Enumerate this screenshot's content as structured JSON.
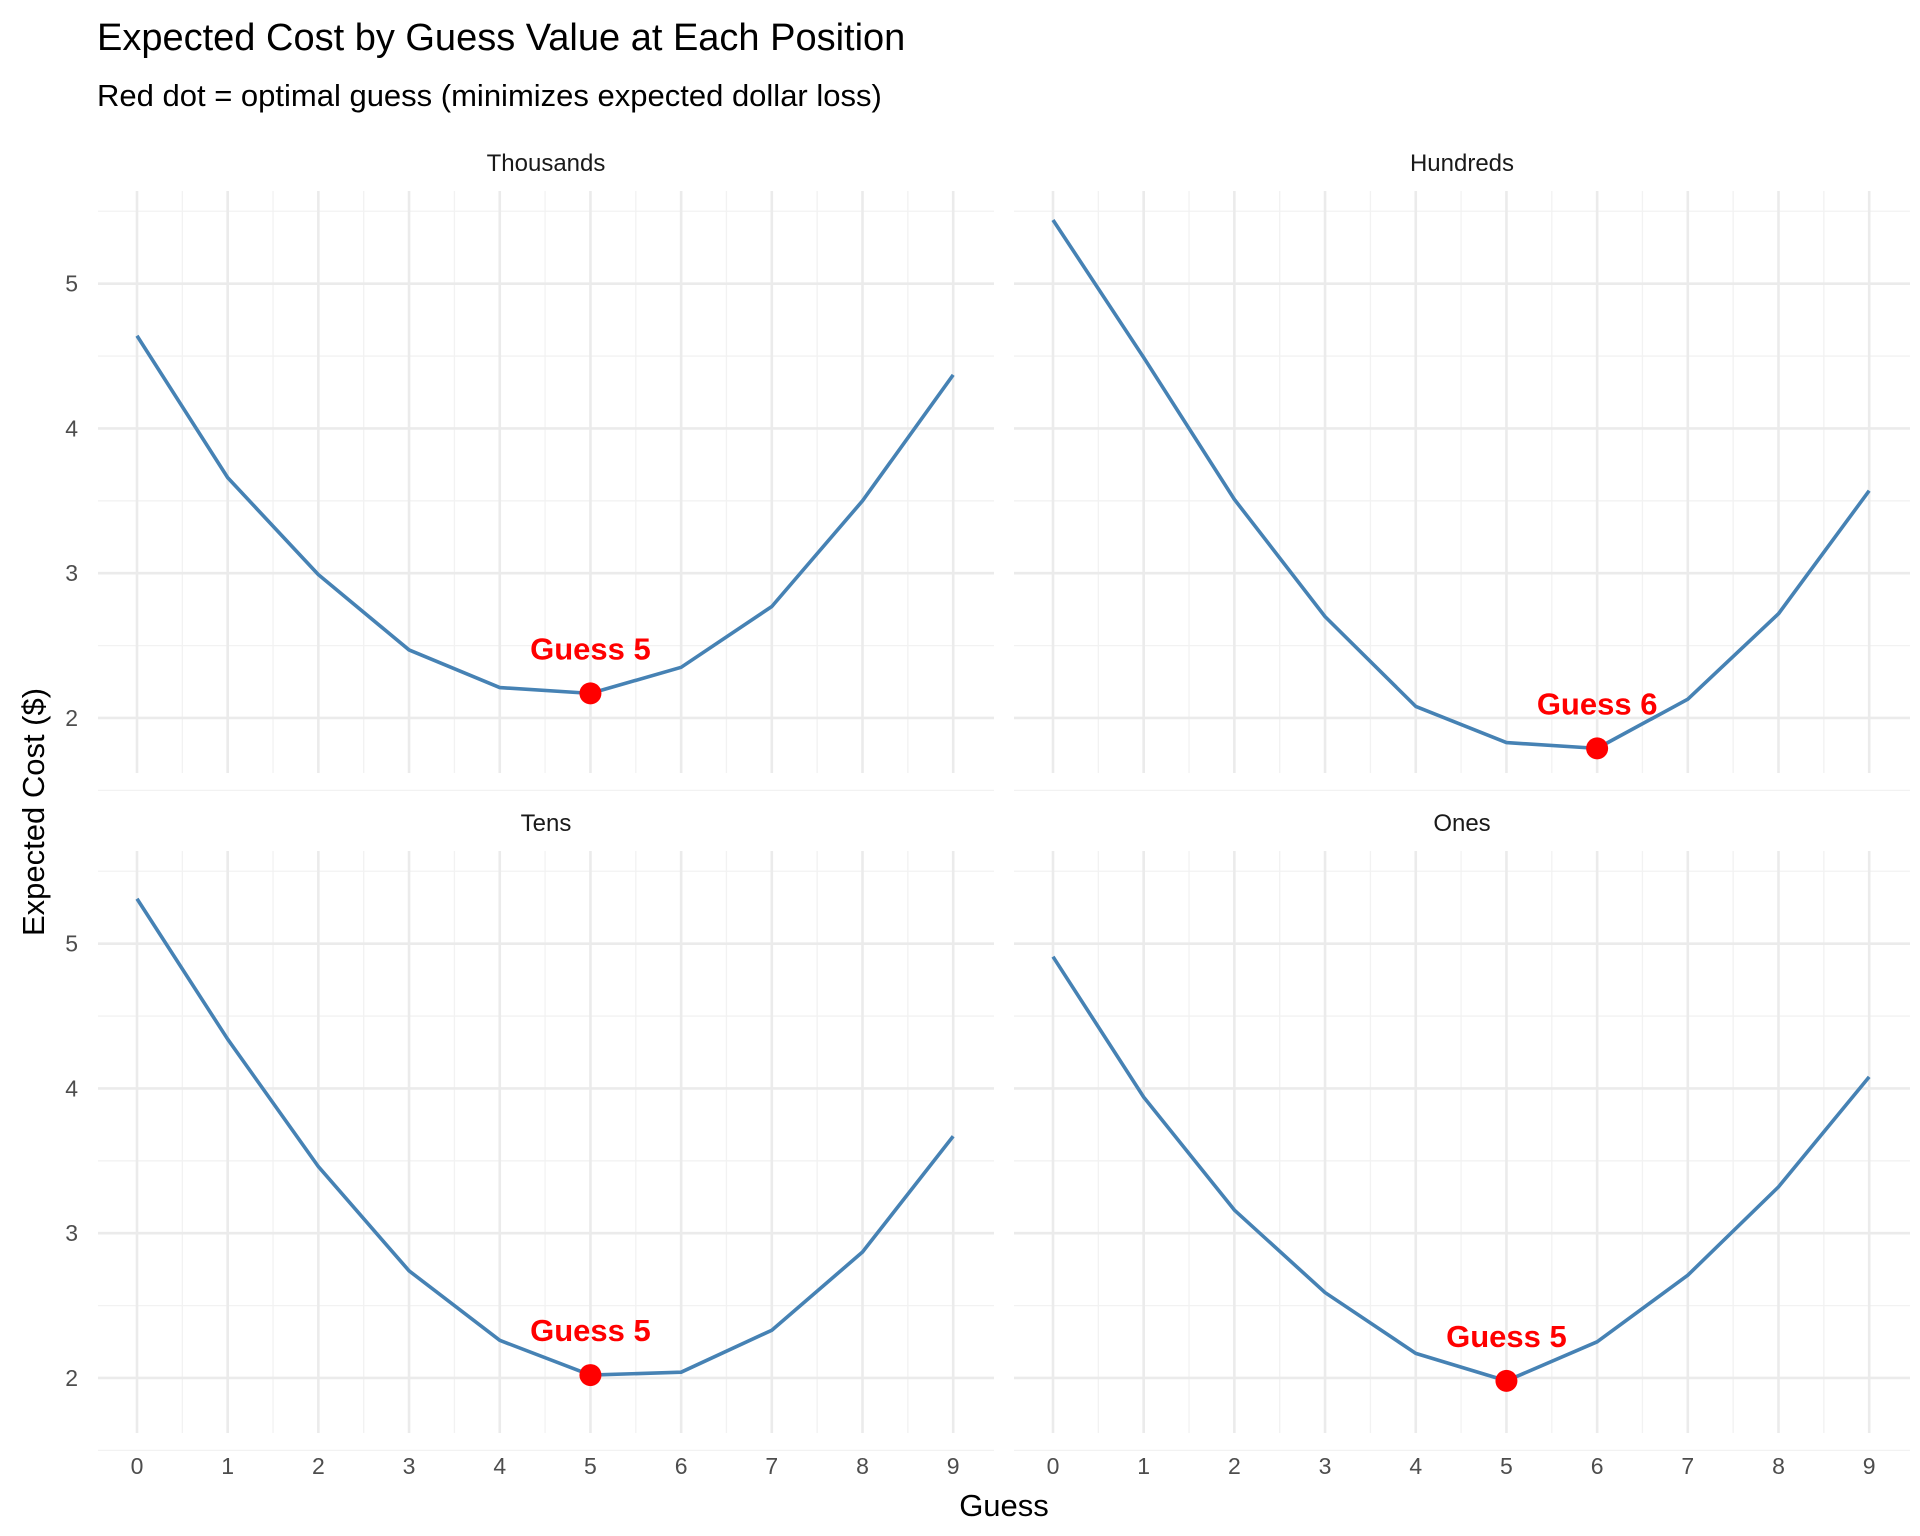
{
  "chart_data": {
    "type": "line",
    "title": "Expected Cost by Guess Value at Each Position",
    "subtitle": "Red dot = optimal guess (minimizes expected dollar loss)",
    "xlabel": "Guess",
    "ylabel": "Expected Cost ($)",
    "x": [
      0,
      1,
      2,
      3,
      4,
      5,
      6,
      7,
      8,
      9
    ],
    "x_ticks": [
      "0",
      "1",
      "2",
      "3",
      "4",
      "5",
      "6",
      "7",
      "8",
      "9"
    ],
    "y_ticks": [
      "2",
      "3",
      "4",
      "5"
    ],
    "xlim": [
      -0.43,
      9.45
    ],
    "ylim": [
      1.62,
      5.64
    ],
    "grid": true,
    "line_color": "#4682B4",
    "point_color": "#FF0000",
    "panels": [
      {
        "name": "Thousands",
        "values": [
          4.64,
          3.66,
          2.99,
          2.47,
          2.21,
          2.17,
          2.35,
          2.77,
          3.5,
          4.37
        ],
        "optimal": 5,
        "annotation": "Guess 5"
      },
      {
        "name": "Hundreds",
        "values": [
          5.44,
          4.49,
          3.51,
          2.7,
          2.08,
          1.83,
          1.79,
          2.13,
          2.72,
          3.57
        ],
        "optimal": 6,
        "annotation": "Guess 6"
      },
      {
        "name": "Tens",
        "values": [
          5.31,
          4.34,
          3.46,
          2.74,
          2.26,
          2.02,
          2.04,
          2.33,
          2.87,
          3.67
        ],
        "optimal": 5,
        "annotation": "Guess 5"
      },
      {
        "name": "Ones",
        "values": [
          4.91,
          3.94,
          3.16,
          2.59,
          2.17,
          1.98,
          2.25,
          2.71,
          3.32,
          4.08
        ],
        "optimal": 5,
        "annotation": "Guess 5"
      }
    ]
  }
}
